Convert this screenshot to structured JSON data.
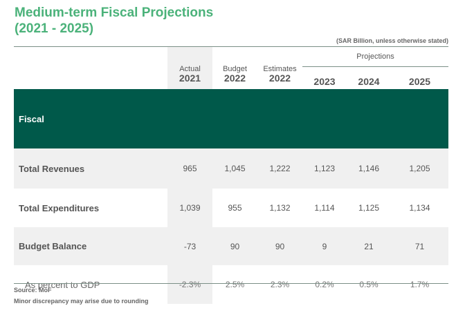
{
  "title_line1": "Medium-term Fiscal Projections",
  "title_line2": "(2021 - 2025)",
  "unit_note": "(SAR Billion, unless otherwise stated)",
  "headers": {
    "actual_label": "Actual",
    "actual_year": "2021",
    "budget_label": "Budget",
    "budget_year": "2022",
    "estimates_label": "Estimates",
    "estimates_year": "2022",
    "projections_label": "Projections",
    "projection_years": [
      "2023",
      "2024",
      "2025"
    ]
  },
  "section_title": "Fiscal",
  "rows": [
    {
      "label": "Total Revenues",
      "values": [
        "965",
        "1,045",
        "1,222",
        "1,123",
        "1,146",
        "1,205"
      ]
    },
    {
      "label": "Total Expenditures",
      "values": [
        "1,039",
        "955",
        "1,132",
        "1,114",
        "1,125",
        "1,134"
      ]
    },
    {
      "label": "Budget Balance",
      "values": [
        "-73",
        "90",
        "90",
        "9",
        "21",
        "71"
      ]
    },
    {
      "label": "As percent to GDP",
      "values": [
        "-2.3%",
        "2.5%",
        "2.3%",
        "0.2%",
        "0.5%",
        "1.7%"
      ]
    }
  ],
  "footnotes": {
    "source": "Source: MoF",
    "note": "Minor discrepancy may arise due to rounding"
  }
}
